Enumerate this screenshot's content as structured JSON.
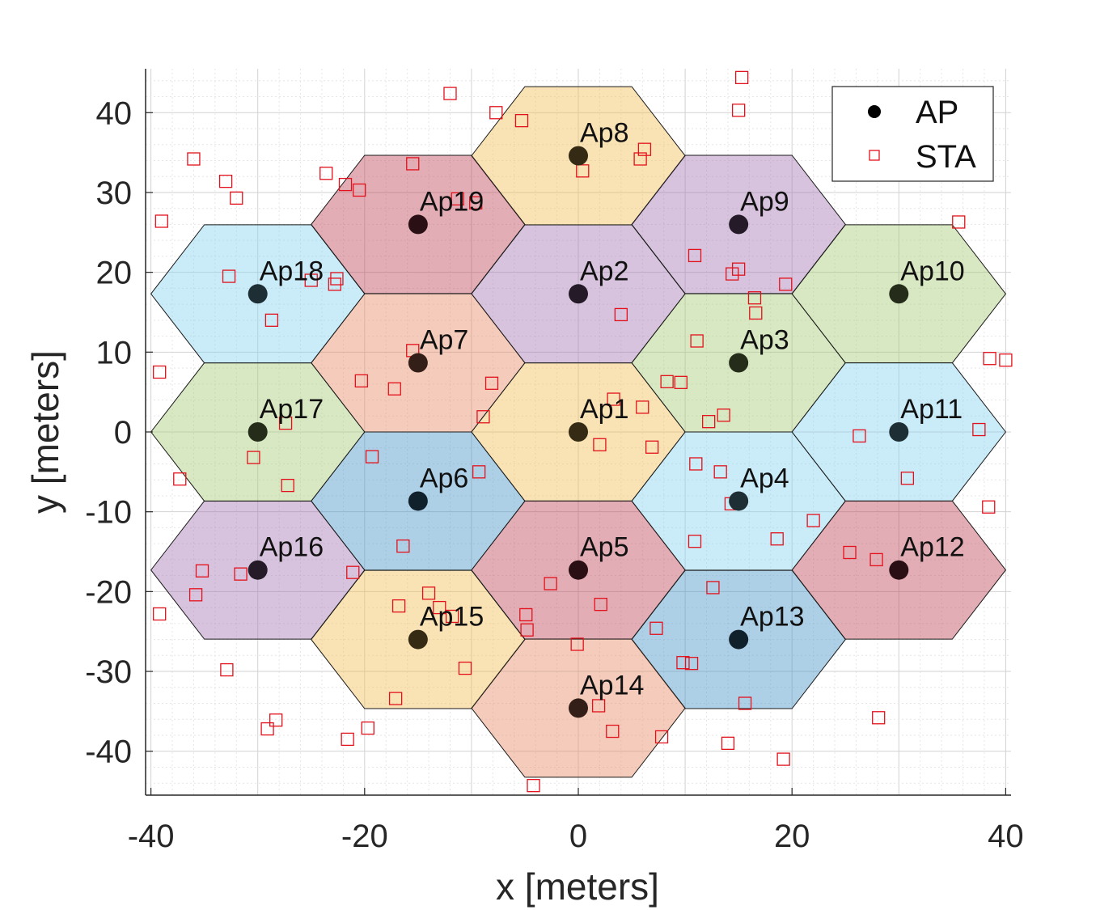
{
  "chart_data": {
    "type": "scatter",
    "xlabel": "x [meters]",
    "ylabel": "y [meters]",
    "xlim": [
      -40.5,
      40.5
    ],
    "ylim": [
      -45.5,
      45.5
    ],
    "xticks": [
      -40,
      -20,
      0,
      20,
      40
    ],
    "xtick_labels": [
      "-40",
      "-20",
      "0",
      "20",
      "40"
    ],
    "yticks": [
      40,
      30,
      20,
      10,
      0,
      -10,
      -20,
      -30,
      -40
    ],
    "ytick_labels": [
      "40",
      "30",
      "20",
      "10",
      "0",
      "-10",
      "-20",
      "-30",
      "-40"
    ],
    "grid": true,
    "minor_grid": true,
    "hex_radius": 10,
    "legend": {
      "position": "top-right",
      "entries": [
        {
          "label": "AP",
          "marker": "filled-circle",
          "color": "#000000"
        },
        {
          "label": "STA",
          "marker": "open-square",
          "color": "#e3111b"
        }
      ]
    },
    "aps": [
      {
        "label": "Ap1",
        "x": 0,
        "y": 0,
        "color": "#f2c25c"
      },
      {
        "label": "Ap2",
        "x": 0,
        "y": 17.3,
        "color": "#a77bb4"
      },
      {
        "label": "Ap3",
        "x": 15,
        "y": 8.66,
        "color": "#a9cc78"
      },
      {
        "label": "Ap4",
        "x": 15,
        "y": -8.66,
        "color": "#89d2f0"
      },
      {
        "label": "Ap5",
        "x": 0,
        "y": -17.3,
        "color": "#c0495b"
      },
      {
        "label": "Ap6",
        "x": -15,
        "y": -8.66,
        "color": "#4b96c9"
      },
      {
        "label": "Ap7",
        "x": -15,
        "y": 8.66,
        "color": "#e88d6a"
      },
      {
        "label": "Ap8",
        "x": 0,
        "y": 34.6,
        "color": "#f2c25c"
      },
      {
        "label": "Ap9",
        "x": 15,
        "y": 26,
        "color": "#a77bb4"
      },
      {
        "label": "Ap10",
        "x": 30,
        "y": 17.3,
        "color": "#a9cc78"
      },
      {
        "label": "Ap11",
        "x": 30,
        "y": 0,
        "color": "#89d2f0"
      },
      {
        "label": "Ap12",
        "x": 30,
        "y": -17.3,
        "color": "#c0495b"
      },
      {
        "label": "Ap13",
        "x": 15,
        "y": -26,
        "color": "#4b96c9"
      },
      {
        "label": "Ap14",
        "x": 0,
        "y": -34.6,
        "color": "#e88d6a"
      },
      {
        "label": "Ap15",
        "x": -15,
        "y": -26,
        "color": "#f2c25c"
      },
      {
        "label": "Ap16",
        "x": -30,
        "y": -17.3,
        "color": "#a77bb4"
      },
      {
        "label": "Ap17",
        "x": -30,
        "y": 0,
        "color": "#a9cc78"
      },
      {
        "label": "Ap18",
        "x": -30,
        "y": 17.3,
        "color": "#89d2f0"
      },
      {
        "label": "Ap19",
        "x": -15,
        "y": 26,
        "color": "#c0495b"
      }
    ],
    "stas": [
      [
        -12,
        42.4
      ],
      [
        -7.7,
        40
      ],
      [
        -5.3,
        39
      ],
      [
        -15.5,
        33.6
      ],
      [
        -36,
        34.2
      ],
      [
        -33,
        31.4
      ],
      [
        -32,
        29.3
      ],
      [
        -23.6,
        32.4
      ],
      [
        -21.8,
        31
      ],
      [
        -20.5,
        30.3
      ],
      [
        -39,
        26.4
      ],
      [
        -11.3,
        29.2
      ],
      [
        -9.6,
        28.7
      ],
      [
        0.4,
        32.7
      ],
      [
        5.8,
        34.2
      ],
      [
        6.2,
        35.4
      ],
      [
        15.3,
        44.4
      ],
      [
        15,
        40.3
      ],
      [
        10.9,
        22.1
      ],
      [
        14.4,
        19.8
      ],
      [
        15,
        20.4
      ],
      [
        19.4,
        18.5
      ],
      [
        16.5,
        16.8
      ],
      [
        16.6,
        14.9
      ],
      [
        4,
        14.7
      ],
      [
        -32.7,
        19.5
      ],
      [
        -25,
        19
      ],
      [
        -22.8,
        18.5
      ],
      [
        -22.6,
        19.2
      ],
      [
        -28.7,
        14
      ],
      [
        -15.5,
        10.2
      ],
      [
        -20.3,
        6.4
      ],
      [
        -17.2,
        5.4
      ],
      [
        -8.1,
        6.1
      ],
      [
        -8.9,
        1.9
      ],
      [
        3.3,
        4.1
      ],
      [
        6,
        3.1
      ],
      [
        8.3,
        6.3
      ],
      [
        9.6,
        6.2
      ],
      [
        11.1,
        11.4
      ],
      [
        12.2,
        1.3
      ],
      [
        13.6,
        2.1
      ],
      [
        -39.2,
        7.5
      ],
      [
        -27.4,
        1.1
      ],
      [
        -30.4,
        -3.2
      ],
      [
        -27.2,
        -6.7
      ],
      [
        -37.3,
        -5.9
      ],
      [
        -19.3,
        -3.1
      ],
      [
        -9.3,
        -5
      ],
      [
        2,
        -1.6
      ],
      [
        6.9,
        -1.9
      ],
      [
        11,
        -4
      ],
      [
        13.3,
        -5
      ],
      [
        14.3,
        -9
      ],
      [
        22,
        -11.1
      ],
      [
        26.3,
        -0.5
      ],
      [
        30.8,
        -5.8
      ],
      [
        37.5,
        0.3
      ],
      [
        38.5,
        9.2
      ],
      [
        40,
        9
      ],
      [
        38.4,
        -9.4
      ],
      [
        35.6,
        26.3
      ],
      [
        -16.4,
        -14.3
      ],
      [
        -21.1,
        -17.6
      ],
      [
        -35.2,
        -17.4
      ],
      [
        -31.6,
        -17.8
      ],
      [
        -35.8,
        -20.4
      ],
      [
        -39.2,
        -22.8
      ],
      [
        -2.6,
        -19
      ],
      [
        2.1,
        -21.6
      ],
      [
        12.6,
        -19.5
      ],
      [
        10.9,
        -13.7
      ],
      [
        18.6,
        -13.4
      ],
      [
        25.4,
        -15.1
      ],
      [
        27.9,
        -16
      ],
      [
        -16.8,
        -21.8
      ],
      [
        -14,
        -20.2
      ],
      [
        -13,
        -22
      ],
      [
        -11.8,
        -23.1
      ],
      [
        -4.9,
        -22.9
      ],
      [
        -4.8,
        -24.8
      ],
      [
        7.3,
        -24.6
      ],
      [
        9.8,
        -28.9
      ],
      [
        10.6,
        -29
      ],
      [
        -0.1,
        -26.6
      ],
      [
        -10.6,
        -29.6
      ],
      [
        -17.1,
        -33.4
      ],
      [
        -32.9,
        -29.8
      ],
      [
        -28.3,
        -36.1
      ],
      [
        -29.1,
        -37.2
      ],
      [
        -21.6,
        -38.5
      ],
      [
        -19.7,
        -37.1
      ],
      [
        1.9,
        -34.3
      ],
      [
        3.2,
        -37.5
      ],
      [
        7.8,
        -38.2
      ],
      [
        14,
        -39
      ],
      [
        15.6,
        -34
      ],
      [
        19.2,
        -41
      ],
      [
        28.1,
        -35.8
      ],
      [
        -4.2,
        -44.3
      ]
    ]
  }
}
